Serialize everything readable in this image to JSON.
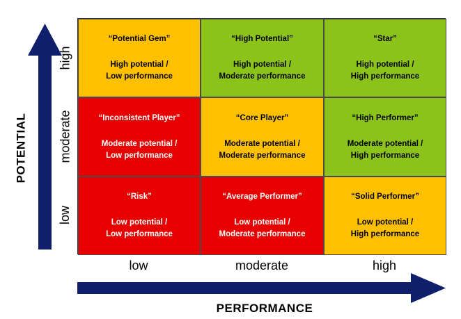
{
  "axes": {
    "y_title": "POTENTIAL",
    "x_title": "PERFORMANCE",
    "y_ticks": {
      "high": "high",
      "moderate": "moderate",
      "low": "low"
    },
    "x_ticks": {
      "low": "low",
      "moderate": "moderate",
      "high": "high"
    }
  },
  "colors": {
    "arrow": "#0f1f6b",
    "red": "#e80000",
    "yellow": "#ffc000",
    "green": "#8cc31a"
  },
  "cells": {
    "high_low": {
      "name": "“Potential Gem”",
      "line1": "High potential /",
      "line2": "Low performance",
      "color": "yellow"
    },
    "high_mod": {
      "name": "“High Potential”",
      "line1": "High potential /",
      "line2": "Moderate performance",
      "color": "green"
    },
    "high_high": {
      "name": "“Star”",
      "line1": "High potential /",
      "line2": "High performance",
      "color": "green"
    },
    "mod_low": {
      "name": "“Inconsistent Player”",
      "line1": "Moderate potential /",
      "line2": "Low performance",
      "color": "red"
    },
    "mod_mod": {
      "name": "“Core Player”",
      "line1": "Moderate potential /",
      "line2": "Moderate performance",
      "color": "yellow"
    },
    "mod_high": {
      "name": "“High Performer”",
      "line1": "Moderate potential /",
      "line2": "High performance",
      "color": "green"
    },
    "low_low": {
      "name": "“Risk”",
      "line1": "Low potential /",
      "line2": "Low performance",
      "color": "red"
    },
    "low_mod": {
      "name": "“Average Performer”",
      "line1": "Low potential /",
      "line2": "Moderate performance",
      "color": "red"
    },
    "low_high": {
      "name": "“Solid Performer”",
      "line1": "Low potential /",
      "line2": "High performance",
      "color": "yellow"
    }
  }
}
